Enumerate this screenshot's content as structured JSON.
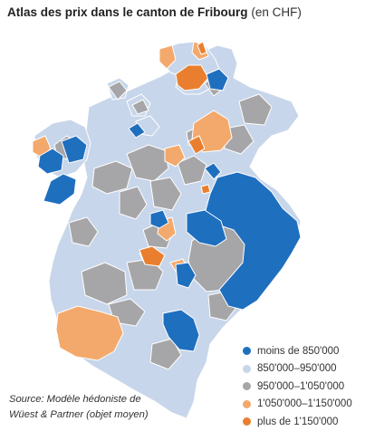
{
  "title": {
    "main": "Atlas des prix dans le canton de Fribourg",
    "unit": "(en CHF)"
  },
  "legend": [
    {
      "label": "moins de 850'000",
      "color": "#1f6fbf"
    },
    {
      "label": "850'000–950'000",
      "color": "#c7d6ea"
    },
    {
      "label": "950'000–1'050'000",
      "color": "#a6a6a8"
    },
    {
      "label": "1'050'000–1'150'000",
      "color": "#f3a96c"
    },
    {
      "label": "plus de 1'150'000",
      "color": "#e97f2e"
    }
  ],
  "source": {
    "line1": "Source: Modèle hédoniste de",
    "line2": "Wüest & Partner (objet moyen)"
  }
}
